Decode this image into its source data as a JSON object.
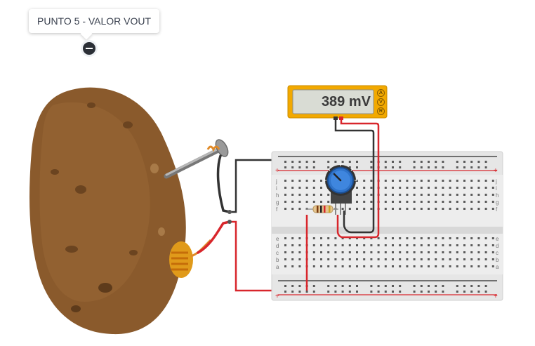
{
  "annotation": {
    "text": "PUNTO 5 - VALOR VOUT"
  },
  "multimeter": {
    "reading": "389 mV",
    "modes": [
      "A",
      "V",
      "R"
    ]
  },
  "breadboard": {
    "row_letters_top": [
      "j",
      "i",
      "h",
      "g",
      "f"
    ],
    "row_letters_bottom": [
      "e",
      "d",
      "c",
      "b",
      "a"
    ],
    "rail_plus": "+",
    "rail_minus": "−"
  },
  "colors": {
    "potato": "#8a5a2c",
    "multimeter_body": "#f2a900",
    "wire_red": "#d8262c",
    "wire_black": "#333333",
    "pot_knob": "#2f73c9"
  }
}
